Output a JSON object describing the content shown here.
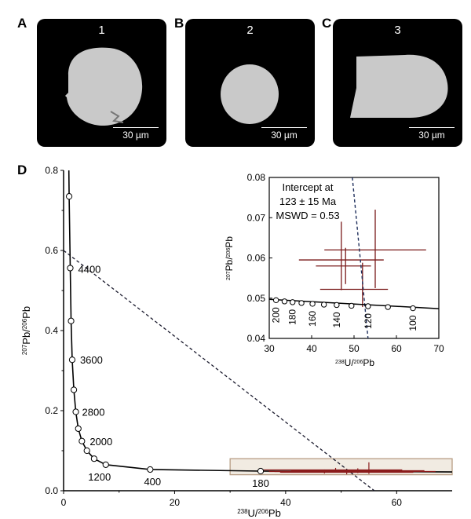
{
  "panels": {
    "a": {
      "letter": "A",
      "number": "1",
      "scale": "30 µm"
    },
    "b": {
      "letter": "B",
      "number": "2",
      "scale": "30 µm"
    },
    "c": {
      "letter": "C",
      "number": "3",
      "scale": "30 µm"
    },
    "d": {
      "letter": "D"
    }
  },
  "chart_data": [
    {
      "type": "scatter",
      "xlabel_parts": [
        "238",
        "U/",
        "206",
        "Pb"
      ],
      "ylabel_parts": [
        "207",
        "Pb/",
        "206",
        "Pb"
      ],
      "xlim": [
        0,
        70
      ],
      "ylim": [
        0,
        0.8
      ],
      "x_ticks": [
        "0",
        "20",
        "40",
        "60"
      ],
      "y_ticks": [
        "0.0",
        "0.2",
        "0.4",
        "0.6",
        "0.8"
      ],
      "concordia": [
        {
          "x": 1.0,
          "y": 0.735,
          "label": ""
        },
        {
          "x": 1.2,
          "y": 0.556,
          "label": "4400"
        },
        {
          "x": 1.35,
          "y": 0.424,
          "label": ""
        },
        {
          "x": 1.55,
          "y": 0.327,
          "label": "3600"
        },
        {
          "x": 1.85,
          "y": 0.252,
          "label": ""
        },
        {
          "x": 2.2,
          "y": 0.197,
          "label": "2800"
        },
        {
          "x": 2.65,
          "y": 0.155,
          "label": ""
        },
        {
          "x": 3.3,
          "y": 0.124,
          "label": "2000"
        },
        {
          "x": 4.2,
          "y": 0.1,
          "label": ""
        },
        {
          "x": 5.5,
          "y": 0.08,
          "label": ""
        },
        {
          "x": 7.6,
          "y": 0.065,
          "label": "1200"
        },
        {
          "x": 15.6,
          "y": 0.053,
          "label": "400"
        },
        {
          "x": 35.5,
          "y": 0.049,
          "label": "180"
        }
      ],
      "discordia": {
        "x": [
          0,
          56
        ],
        "y": [
          0.6,
          0.0
        ]
      },
      "errors": [
        {
          "x": 49,
          "xerr": [
            36,
            61
          ],
          "y": 0.052,
          "yerr": [
            0.046,
            0.057
          ]
        },
        {
          "x": 53,
          "xerr": [
            41,
            65
          ],
          "y": 0.05,
          "yerr": [
            0.044,
            0.056
          ]
        },
        {
          "x": 47,
          "xerr": [
            37,
            57
          ],
          "y": 0.048,
          "yerr": [
            0.043,
            0.053
          ]
        },
        {
          "x": 55,
          "xerr": [
            38,
            67
          ],
          "y": 0.048,
          "yerr": [
            0.042,
            0.071
          ]
        },
        {
          "x": 51,
          "xerr": [
            39,
            63
          ],
          "y": 0.046,
          "yerr": [
            0.041,
            0.052
          ]
        }
      ],
      "zoom_box": {
        "x": [
          30,
          70
        ],
        "y": [
          0.04,
          0.08
        ]
      }
    },
    {
      "type": "scatter",
      "xlabel_parts": [
        "238",
        "U/",
        "206",
        "Pb"
      ],
      "ylabel_parts": [
        "207",
        "Pb/",
        "206",
        "Pb"
      ],
      "xlim": [
        30,
        70
      ],
      "ylim": [
        0.04,
        0.08
      ],
      "x_ticks": [
        "30",
        "40",
        "50",
        "60",
        "70"
      ],
      "y_ticks": [
        "0.04",
        "0.05",
        "0.06",
        "0.07",
        "0.08"
      ],
      "annotation": [
        "Intercept at",
        "123 ± 15 Ma",
        "MSWD = 0.53"
      ],
      "concordia_curve": {
        "x": [
          30,
          70
        ],
        "y": [
          0.0497,
          0.0474
        ]
      },
      "concordia": [
        {
          "x": 31.6,
          "y": 0.0495,
          "label": "200"
        },
        {
          "x": 33.6,
          "y": 0.0492,
          "label": ""
        },
        {
          "x": 35.5,
          "y": 0.049,
          "label": "180"
        },
        {
          "x": 37.6,
          "y": 0.0488,
          "label": ""
        },
        {
          "x": 40.2,
          "y": 0.0486,
          "label": "160"
        },
        {
          "x": 42.9,
          "y": 0.0484,
          "label": ""
        },
        {
          "x": 45.9,
          "y": 0.0483,
          "label": "140"
        },
        {
          "x": 49.4,
          "y": 0.0481,
          "label": ""
        },
        {
          "x": 53.3,
          "y": 0.048,
          "label": "120"
        },
        {
          "x": 58.0,
          "y": 0.0478,
          "label": ""
        },
        {
          "x": 63.9,
          "y": 0.0475,
          "label": "100"
        }
      ],
      "discordia": {
        "x": [
          49.6,
          53.3
        ],
        "y": [
          0.08,
          0.04
        ]
      },
      "errors": [
        {
          "x": 55,
          "xerr": [
            43,
            67
          ],
          "y": 0.062,
          "yerr": [
            0.0525,
            0.072
          ]
        },
        {
          "x": 47,
          "xerr": [
            37,
            57
          ],
          "y": 0.0595,
          "yerr": [
            0.052,
            0.069
          ]
        },
        {
          "x": 52,
          "xerr": [
            42,
            58
          ],
          "y": 0.0522,
          "yerr": [
            0.0478,
            0.0588
          ]
        },
        {
          "x": 48,
          "xerr": [
            41,
            54
          ],
          "y": 0.058,
          "yerr": [
            0.0535,
            0.0625
          ]
        }
      ]
    }
  ]
}
